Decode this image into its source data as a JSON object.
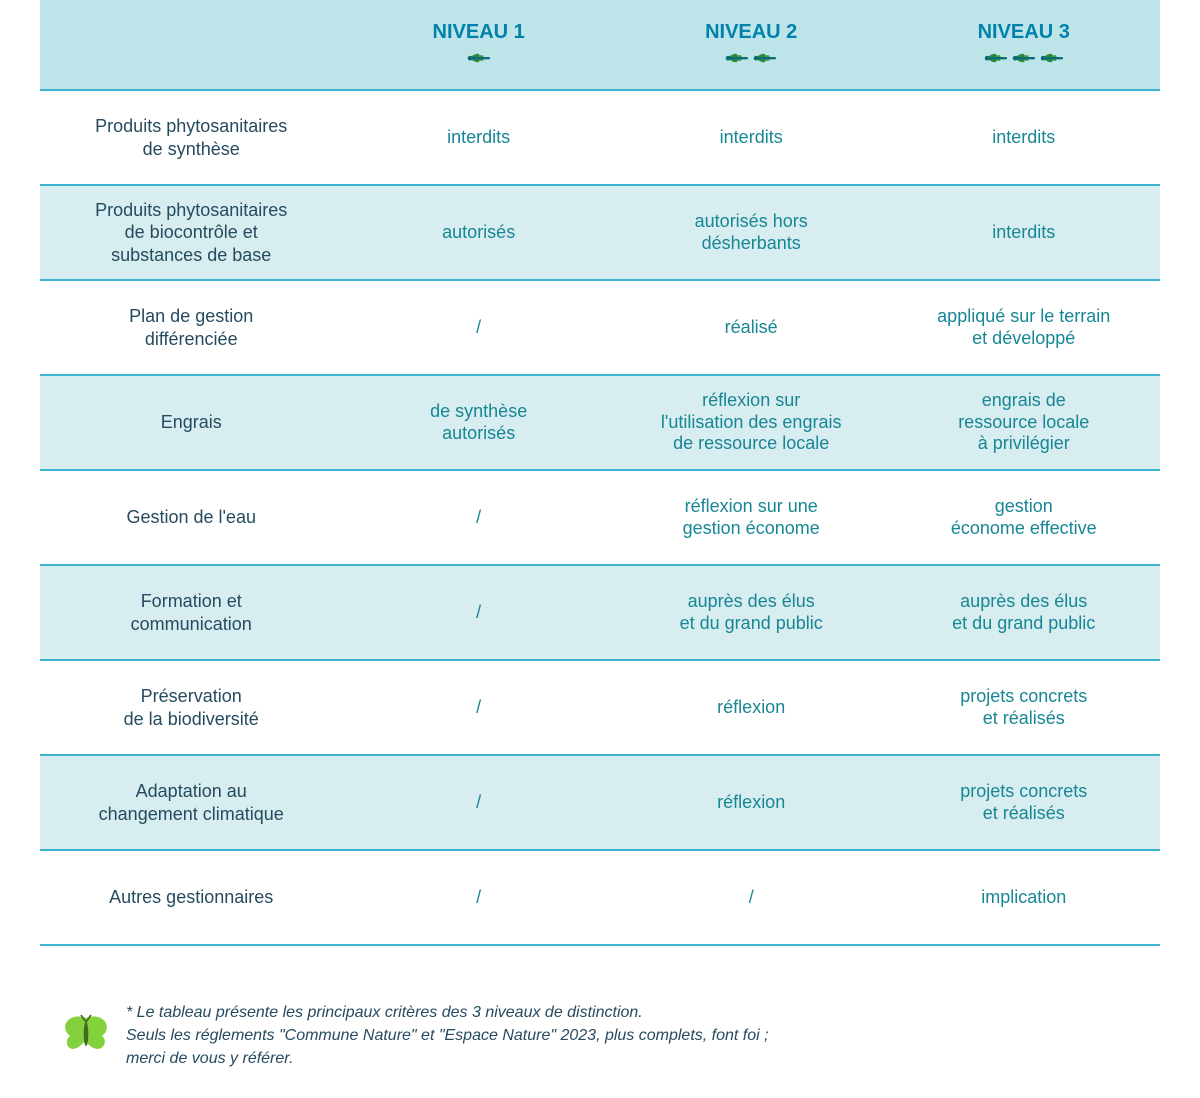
{
  "colors": {
    "header_bg": "#bde4e9",
    "alt_row_bg": "#d7edf0",
    "border": "#3cb4cf",
    "header_text": "#0082ad",
    "criteria_text": "#264a5f",
    "value_text": "#178695",
    "dragonfly_body": "#0b6b78",
    "dragonfly_wing": "#3a9d42",
    "butterfly": "#83d13c"
  },
  "table": {
    "columns": [
      {
        "label": "",
        "icons": 0
      },
      {
        "label": "NIVEAU 1",
        "icons": 1
      },
      {
        "label": "NIVEAU 2",
        "icons": 2
      },
      {
        "label": "NIVEAU 3",
        "icons": 3
      }
    ],
    "rows": [
      {
        "alt": false,
        "criteria": "Produits phytosanitaires\nde synthèse",
        "v1": "interdits",
        "v2": "interdits",
        "v3": "interdits"
      },
      {
        "alt": true,
        "criteria": "Produits phytosanitaires\nde biocontrôle et\nsubstances de base",
        "v1": "autorisés",
        "v2": "autorisés hors\ndésherbants",
        "v3": "interdits"
      },
      {
        "alt": false,
        "criteria": "Plan de gestion\ndifférenciée",
        "v1": "/",
        "v2": "réalisé",
        "v3": "appliqué sur le terrain\net développé"
      },
      {
        "alt": true,
        "criteria": "Engrais",
        "v1": "de synthèse\nautorisés",
        "v2": "réflexion sur\nl'utilisation des engrais\nde ressource locale",
        "v3": "engrais de\nressource locale\nà privilégier"
      },
      {
        "alt": false,
        "criteria": "Gestion de l'eau",
        "v1": "/",
        "v2": "réflexion sur une\ngestion économe",
        "v3": "gestion\néconome effective"
      },
      {
        "alt": true,
        "criteria": "Formation et\ncommunication",
        "v1": "/",
        "v2": "auprès des élus\net du grand public",
        "v3": "auprès des élus\net du grand public"
      },
      {
        "alt": false,
        "criteria": "Préservation\nde la biodiversité",
        "v1": "/",
        "v2": "réflexion",
        "v3": "projets concrets\net réalisés"
      },
      {
        "alt": true,
        "criteria": "Adaptation au\nchangement climatique",
        "v1": "/",
        "v2": "réflexion",
        "v3": "projets concrets\net réalisés"
      },
      {
        "alt": false,
        "criteria": "Autres gestionnaires",
        "v1": "/",
        "v2": "/",
        "v3": "implication"
      }
    ]
  },
  "footnote": "* Le tableau présente les principaux critères des 3 niveaux de distinction.\nSeuls les réglements \"Commune Nature\" et \"Espace Nature\" 2023, plus complets, font foi ;\nmerci de vous y référer."
}
